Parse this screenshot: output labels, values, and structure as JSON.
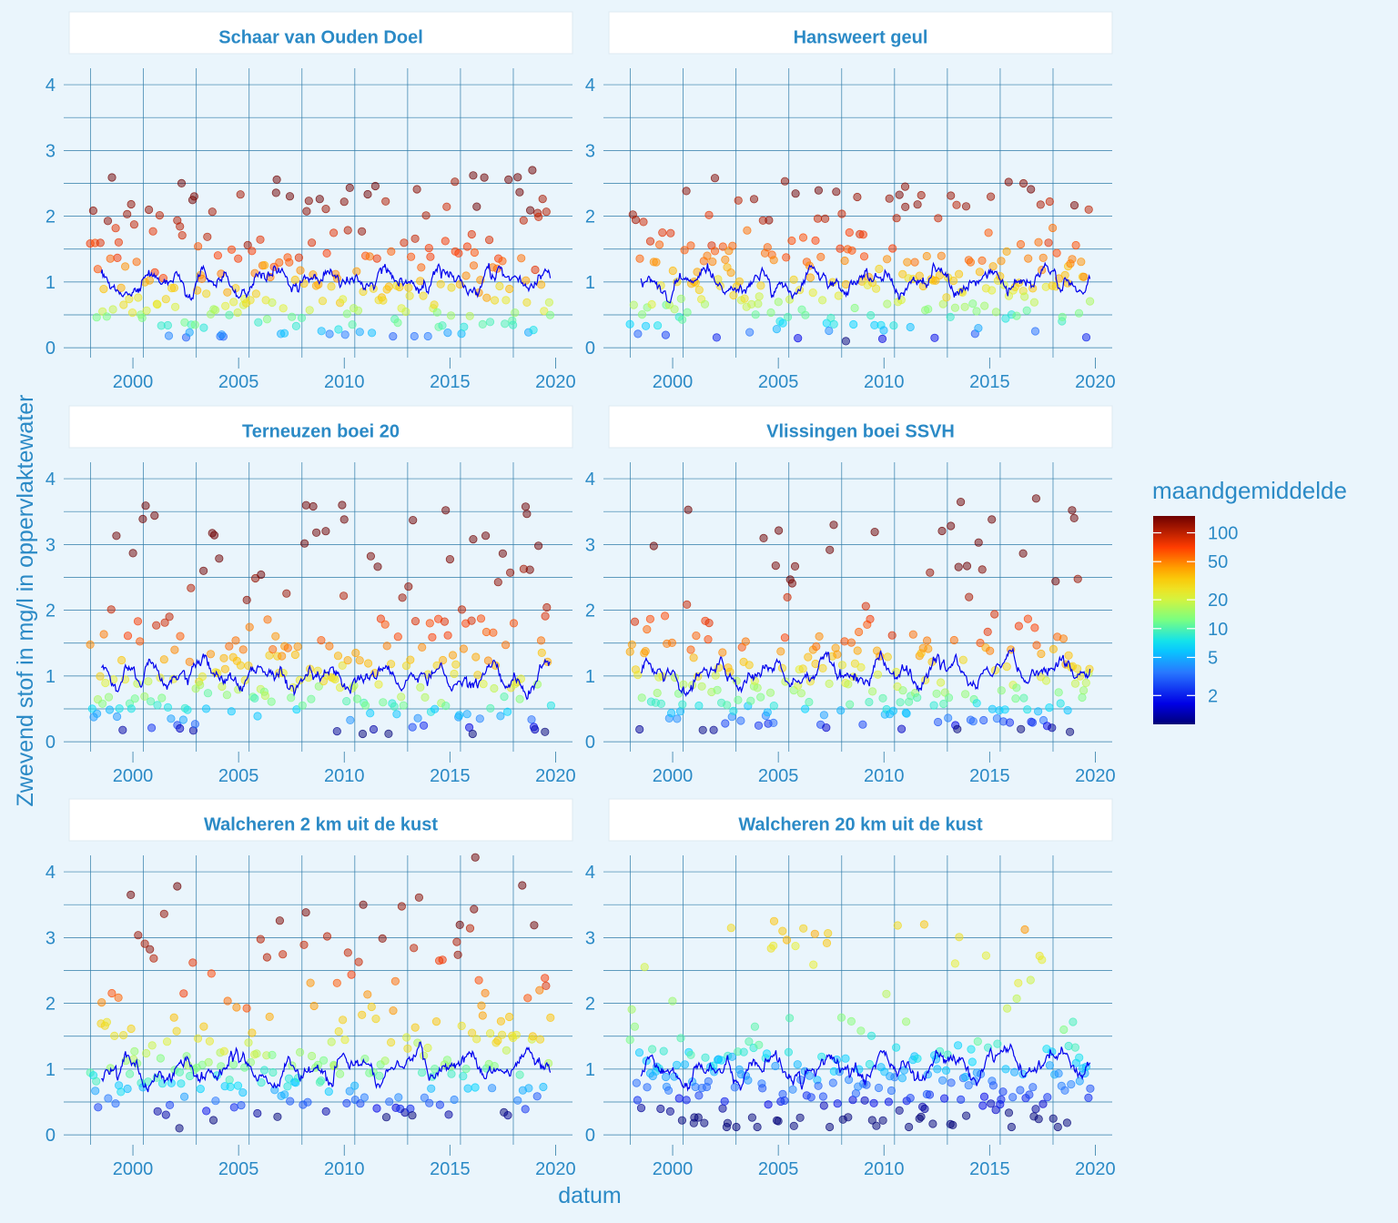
{
  "chart_data": {
    "type": "scatter",
    "facets": [
      {
        "title": "Schaar van Ouden Doel",
        "seed": 11,
        "base": 1.0,
        "lineLevel": 1.02,
        "lineTrend": 0.12,
        "lineAmp": 0.18,
        "spread": 0.55,
        "hiMax": 2.6,
        "hiProb": 0.32,
        "colorBase": 42,
        "colorSpread": 0.9,
        "notable_points": [
          [
            2004.2,
            0.2
          ],
          [
            2016.1,
            2.62
          ],
          [
            2018.9,
            2.7
          ],
          [
            2010.0,
            2.22
          ],
          [
            2002.9,
            2.3
          ]
        ]
      },
      {
        "title": "Hansweert geul",
        "seed": 23,
        "base": 0.95,
        "lineLevel": 1.0,
        "lineTrend": 0.05,
        "lineAmp": 0.22,
        "spread": 0.55,
        "hiMax": 2.55,
        "hiProb": 0.3,
        "colorBase": 30,
        "colorSpread": 0.95,
        "notable_points": [
          [
            2008.2,
            0.1
          ],
          [
            2002.0,
            2.58
          ],
          [
            2015.9,
            2.52
          ],
          [
            2016.6,
            2.5
          ],
          [
            2011.0,
            2.45
          ]
        ]
      },
      {
        "title": "Terneuzen boei 20",
        "seed": 37,
        "base": 0.95,
        "lineLevel": 1.0,
        "lineTrend": -0.05,
        "lineAmp": 0.25,
        "spread": 0.65,
        "hiMax": 3.6,
        "hiProb": 0.3,
        "colorBase": 24,
        "colorSpread": 1.1,
        "notable_points": [
          [
            2009.9,
            3.6
          ],
          [
            2010.0,
            3.38
          ],
          [
            2014.8,
            3.52
          ],
          [
            2016.1,
            3.08
          ],
          [
            2019.5,
            0.15
          ]
        ]
      },
      {
        "title": "Vlissingen boei SSVH",
        "seed": 53,
        "base": 0.95,
        "lineLevel": 1.05,
        "lineTrend": 0.1,
        "lineAmp": 0.25,
        "spread": 0.7,
        "hiMax": 3.7,
        "hiProb": 0.3,
        "colorBase": 22,
        "colorSpread": 1.15,
        "notable_points": [
          [
            2017.2,
            3.7
          ],
          [
            2018.9,
            3.52
          ],
          [
            2019.0,
            3.4
          ],
          [
            2015.1,
            3.38
          ],
          [
            2018.8,
            0.15
          ]
        ]
      },
      {
        "title": "Walcheren 2 km uit de kust",
        "seed": 71,
        "base": 1.05,
        "lineLevel": 1.0,
        "lineTrend": 0.1,
        "lineAmp": 0.25,
        "spread": 0.75,
        "hiMax": 3.8,
        "hiProb": 0.32,
        "colorBase": 13,
        "colorSpread": 1.25,
        "notable_points": [
          [
            2016.2,
            4.22
          ],
          [
            2002.1,
            3.78
          ],
          [
            1999.9,
            3.65
          ],
          [
            2010.9,
            3.5
          ],
          [
            2002.2,
            0.1
          ]
        ]
      },
      {
        "title": "Walcheren 20 km uit de kust",
        "seed": 97,
        "base": 0.9,
        "lineLevel": 1.0,
        "lineTrend": 0.2,
        "lineAmp": 0.25,
        "spread": 0.7,
        "hiMax": 3.2,
        "hiProb": 0.22,
        "colorBase": 4.5,
        "colorSpread": 1.0,
        "notable_points": [
          [
            2004.8,
            3.25
          ],
          [
            2005.2,
            3.1
          ],
          [
            2011.9,
            3.2
          ],
          [
            2001.0,
            0.18
          ],
          [
            2002.6,
            0.18
          ]
        ]
      }
    ],
    "x_ticks": [
      "2000",
      "2005",
      "2010",
      "2015",
      "2020"
    ],
    "x_tick_values": [
      2000,
      2005,
      2010,
      2015,
      2020
    ],
    "y_ticks": [
      "0",
      "1",
      "2",
      "3",
      "4"
    ],
    "y_tick_values": [
      0,
      1,
      2,
      3,
      4
    ],
    "xlim": [
      1997.5,
      2020.8
    ],
    "ylim": [
      -0.15,
      4.25
    ],
    "x_range_data": [
      1998.0,
      2019.75
    ],
    "xlabel": "datum",
    "ylabel": "Zwevend stof in mg/l in oppervlaktewater",
    "line_color": "#0000EE",
    "grid_color": "#2E7BA8",
    "point_alpha": 0.5,
    "legend": {
      "title": "maandgemiddelde",
      "colorscale": "jet",
      "scale": "log",
      "range": [
        1,
        150
      ],
      "ticks": [
        "2",
        "5",
        "10",
        "20",
        "50",
        "100"
      ],
      "tick_values": [
        2,
        5,
        10,
        20,
        50,
        100
      ],
      "placement": "right"
    }
  }
}
